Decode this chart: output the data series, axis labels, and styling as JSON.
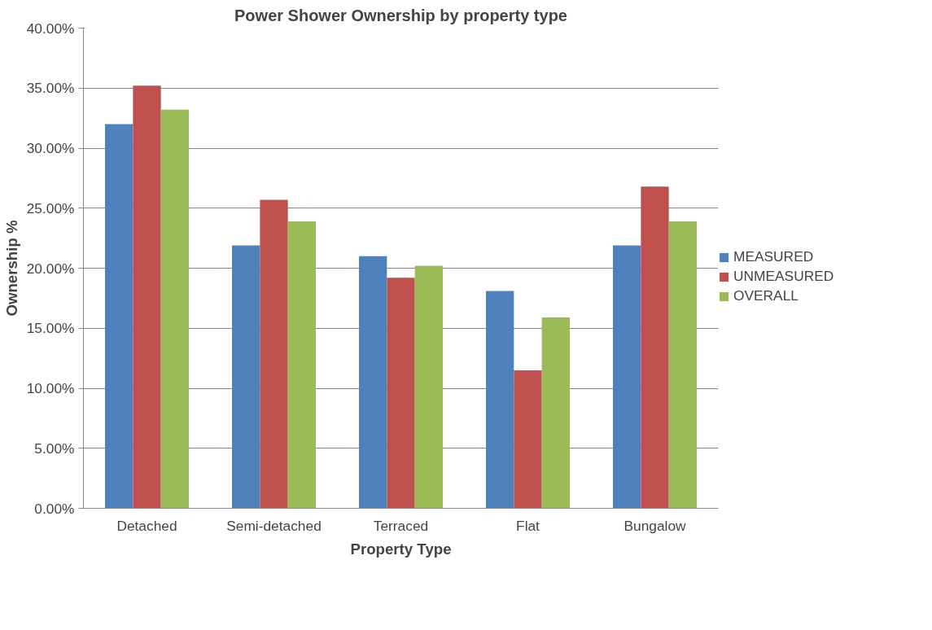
{
  "chart_data": {
    "type": "bar",
    "title": "Power Shower Ownership by property type",
    "xlabel": "Property Type",
    "ylabel": "Ownership %",
    "categories": [
      "Detached",
      "Semi-detached",
      "Terraced",
      "Flat",
      "Bungalow"
    ],
    "series": [
      {
        "name": "MEASURED",
        "color": "#4f81bd",
        "values": [
          32.0,
          21.9,
          21.0,
          18.1,
          21.9
        ]
      },
      {
        "name": "UNMEASURED",
        "color": "#c0504d",
        "values": [
          35.2,
          25.7,
          19.2,
          11.5,
          26.8
        ]
      },
      {
        "name": "OVERALL",
        "color": "#9bbb59",
        "values": [
          33.2,
          23.9,
          20.2,
          15.9,
          23.9
        ]
      }
    ],
    "ylim": [
      0,
      40
    ],
    "yticks": [
      {
        "value": 0,
        "label": "0.00%"
      },
      {
        "value": 5,
        "label": "5.00%"
      },
      {
        "value": 10,
        "label": "10.00%"
      },
      {
        "value": 15,
        "label": "15.00%"
      },
      {
        "value": 20,
        "label": "20.00%"
      },
      {
        "value": 25,
        "label": "25.00%"
      },
      {
        "value": 30,
        "label": "30.00%"
      },
      {
        "value": 35,
        "label": "35.00%"
      },
      {
        "value": 40,
        "label": "40.00%"
      }
    ],
    "grid": "y",
    "legend": "right"
  }
}
